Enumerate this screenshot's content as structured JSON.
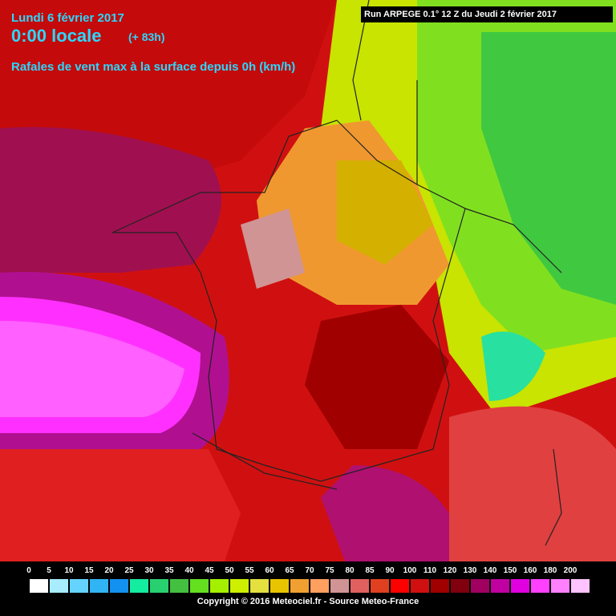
{
  "header": {
    "date": "Lundi 6 février 2017",
    "time": "0:00 locale",
    "lead": "(+ 83h)",
    "subtitle": "Rafales de vent max à la surface depuis 0h (km/h)",
    "run": "Run ARPEGE 0.1° 12 Z du Jeudi 2 février 2017"
  },
  "legend": {
    "items": [
      {
        "label": "0",
        "color": "#ffffff"
      },
      {
        "label": "5",
        "color": "#a8ecff"
      },
      {
        "label": "10",
        "color": "#64d4ff"
      },
      {
        "label": "15",
        "color": "#30b4f4"
      },
      {
        "label": "20",
        "color": "#1490f0"
      },
      {
        "label": "25",
        "color": "#14eca0"
      },
      {
        "label": "30",
        "color": "#28d070"
      },
      {
        "label": "35",
        "color": "#44c040"
      },
      {
        "label": "40",
        "color": "#64e020"
      },
      {
        "label": "45",
        "color": "#a4f000"
      },
      {
        "label": "50",
        "color": "#ccf000"
      },
      {
        "label": "55",
        "color": "#e4e040"
      },
      {
        "label": "60",
        "color": "#e8c400"
      },
      {
        "label": "65",
        "color": "#f0a030"
      },
      {
        "label": "70",
        "color": "#ffa060"
      },
      {
        "label": "75",
        "color": "#d09494"
      },
      {
        "label": "80",
        "color": "#e06060"
      },
      {
        "label": "85",
        "color": "#e04020"
      },
      {
        "label": "90",
        "color": "#ff0000"
      },
      {
        "label": "100",
        "color": "#d01010"
      },
      {
        "label": "110",
        "color": "#a00000"
      },
      {
        "label": "120",
        "color": "#800010"
      },
      {
        "label": "130",
        "color": "#a00060"
      },
      {
        "label": "140",
        "color": "#c000a0"
      },
      {
        "label": "150",
        "color": "#e000e0"
      },
      {
        "label": "160",
        "color": "#ff40ff"
      },
      {
        "label": "180",
        "color": "#ff80ff"
      },
      {
        "label": "200",
        "color": "#ffc4ff"
      }
    ]
  },
  "footer": {
    "copyright": "Copyright © 2016 Meteociel.fr - Source Meteo-France"
  }
}
